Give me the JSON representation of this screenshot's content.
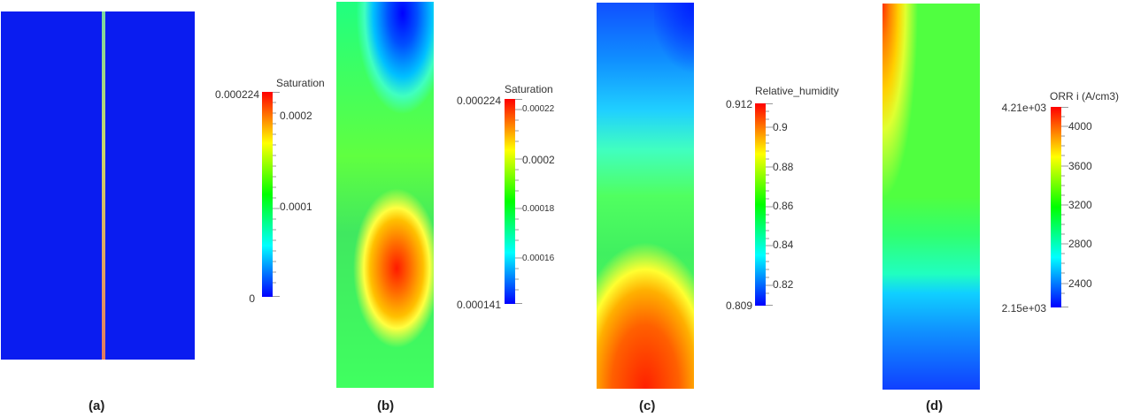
{
  "panels": [
    {
      "label": "(a)",
      "colorbar": {
        "title": "Saturation",
        "max": "0.000224",
        "min": "0",
        "ticks": [
          "0.0002",
          "0.0001"
        ]
      }
    },
    {
      "label": "(b)",
      "colorbar": {
        "title": "Saturation",
        "max": "0.000224",
        "min": "0.000141",
        "ticks": [
          "0.00022",
          "0.0002",
          "0.00018",
          "0.00016"
        ]
      }
    },
    {
      "label": "(c)",
      "colorbar": {
        "title": "Relative_humidity",
        "max": "0.912",
        "min": "0.809",
        "ticks": [
          "0.9",
          "0.88",
          "0.86",
          "0.84",
          "0.82"
        ]
      }
    },
    {
      "label": "(d)",
      "colorbar": {
        "title": "ORR i (A/cm3)",
        "max": "4.21e+03",
        "min": "2.15e+03",
        "ticks": [
          "4000",
          "3600",
          "3200",
          "2800",
          "2400"
        ]
      }
    }
  ],
  "colors": {
    "rainbow": [
      "#0000ff",
      "#00ffff",
      "#00ff00",
      "#ffff00",
      "#ff0000"
    ]
  }
}
